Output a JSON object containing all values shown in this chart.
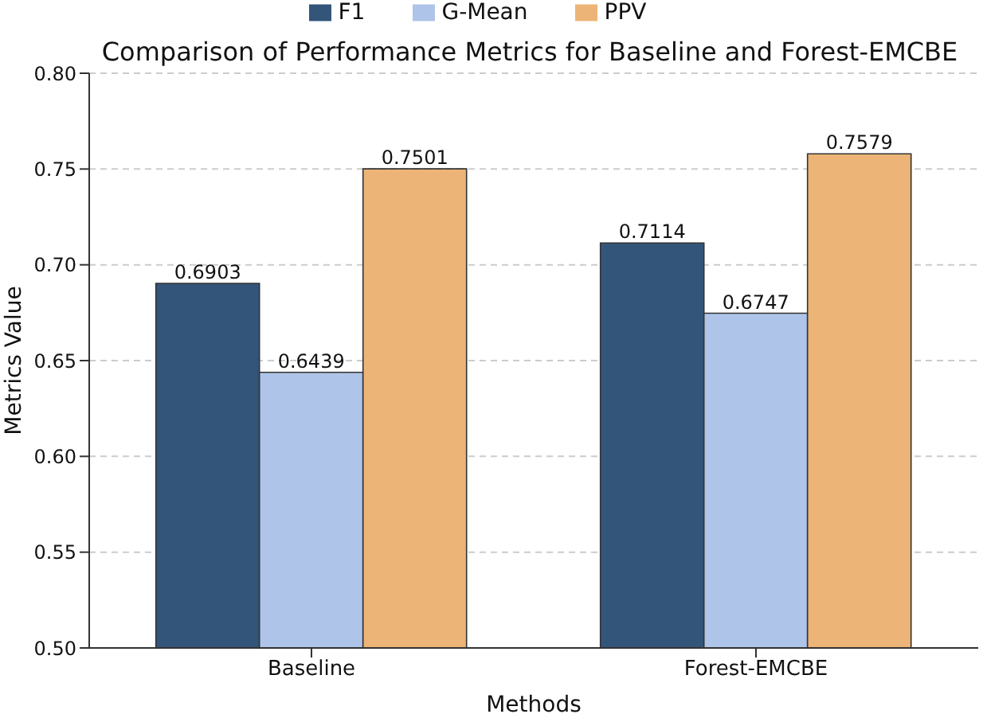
{
  "chart_data": {
    "type": "bar",
    "title": "Comparison of Performance Metrics for Baseline and Forest-EMCBE",
    "xlabel": "Methods",
    "ylabel": "Metrics Value",
    "categories": [
      "Baseline",
      "Forest-EMCBE"
    ],
    "series": [
      {
        "name": "F1",
        "color": "#34557a",
        "values": [
          0.6903,
          0.7114
        ]
      },
      {
        "name": "G-Mean",
        "color": "#aec4e8",
        "values": [
          0.6439,
          0.6747
        ]
      },
      {
        "name": "PPV",
        "color": "#ecb477",
        "values": [
          0.7501,
          0.7579
        ]
      }
    ],
    "ylim": [
      0.5,
      0.8
    ],
    "yticks": [
      {
        "value": 0.5,
        "label": "0.50"
      },
      0.55,
      {
        "value": 0.6,
        "label": "0.60"
      },
      0.65,
      {
        "value": 0.7,
        "label": "0.70"
      },
      0.75,
      {
        "value": 0.8,
        "label": "0.80"
      }
    ],
    "grid": "y",
    "legend": "top",
    "data_labels": true
  }
}
